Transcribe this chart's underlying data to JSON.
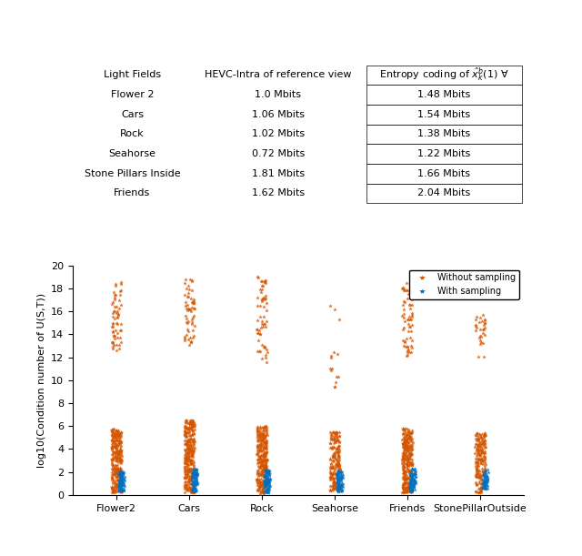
{
  "table": {
    "col_headers": [
      "Light Fields",
      "HEVC-Intra of reference view",
      "Entropy coding of $\\hat{x}_k^b(1)$ $\\forall$"
    ],
    "rows": [
      [
        "Flower 2",
        "1.0 Mbits",
        "1.48 Mbits"
      ],
      [
        "Cars",
        "1.06 Mbits",
        "1.54 Mbits"
      ],
      [
        "Rock",
        "1.02 Mbits",
        "1.38 Mbits"
      ],
      [
        "Seahorse",
        "0.72 Mbits",
        "1.22 Mbits"
      ],
      [
        "Stone Pillars Inside",
        "1.81 Mbits",
        "1.66 Mbits"
      ],
      [
        "Friends",
        "1.62 Mbits",
        "2.04 Mbits"
      ]
    ]
  },
  "scatter": {
    "categories": [
      "Flower2",
      "Cars",
      "Rock",
      "Seahorse",
      "Friends",
      "StonePillarOutside"
    ],
    "orange_color": "#D45500",
    "blue_color": "#0070C0",
    "ylabel": "log10(Condition number of U(S,T))",
    "ylim": [
      0,
      20
    ],
    "yticks": [
      0,
      2,
      4,
      6,
      8,
      10,
      12,
      14,
      16,
      18,
      20
    ],
    "legend_without": "Without sampling",
    "legend_with": "With sampling",
    "seeds": {
      "Flower2": {
        "orange_seed": 42,
        "blue_seed": 10
      },
      "Cars": {
        "orange_seed": 43,
        "blue_seed": 11
      },
      "Rock": {
        "orange_seed": 44,
        "blue_seed": 12
      },
      "Seahorse": {
        "orange_seed": 45,
        "blue_seed": 13
      },
      "Friends": {
        "orange_seed": 46,
        "blue_seed": 14
      },
      "StonePillarOutside": {
        "orange_seed": 47,
        "blue_seed": 15
      }
    },
    "orange_params": {
      "Flower2": {
        "n_dense": 300,
        "dense_min": 0.2,
        "dense_max": 5.8,
        "n_upper": 60,
        "upper_min": 12.5,
        "upper_max": 19.1
      },
      "Cars": {
        "n_dense": 300,
        "dense_min": 0.2,
        "dense_max": 6.5,
        "n_upper": 60,
        "upper_min": 13.0,
        "upper_max": 19.0
      },
      "Rock": {
        "n_dense": 300,
        "dense_min": 0.1,
        "dense_max": 6.0,
        "n_upper": 60,
        "upper_min": 11.5,
        "upper_max": 19.0
      },
      "Seahorse": {
        "n_dense": 200,
        "dense_min": 0.2,
        "dense_max": 5.5,
        "n_upper": 15,
        "upper_min": 8.5,
        "upper_max": 17.2
      },
      "Friends": {
        "n_dense": 300,
        "dense_min": 0.2,
        "dense_max": 5.8,
        "n_upper": 60,
        "upper_min": 12.0,
        "upper_max": 18.8
      },
      "StonePillarOutside": {
        "n_dense": 200,
        "dense_min": 0.2,
        "dense_max": 5.5,
        "n_upper": 30,
        "upper_min": 12.0,
        "upper_max": 15.8
      }
    },
    "blue_params": {
      "Flower2": {
        "n": 80,
        "min": 0.3,
        "max": 2.1
      },
      "Cars": {
        "n": 80,
        "min": 0.3,
        "max": 2.3
      },
      "Rock": {
        "n": 80,
        "min": 0.2,
        "max": 2.2
      },
      "Seahorse": {
        "n": 80,
        "min": 0.3,
        "max": 2.1
      },
      "Friends": {
        "n": 80,
        "min": 0.3,
        "max": 2.3
      },
      "StonePillarOutside": {
        "n": 50,
        "min": 0.5,
        "max": 2.2
      }
    }
  }
}
